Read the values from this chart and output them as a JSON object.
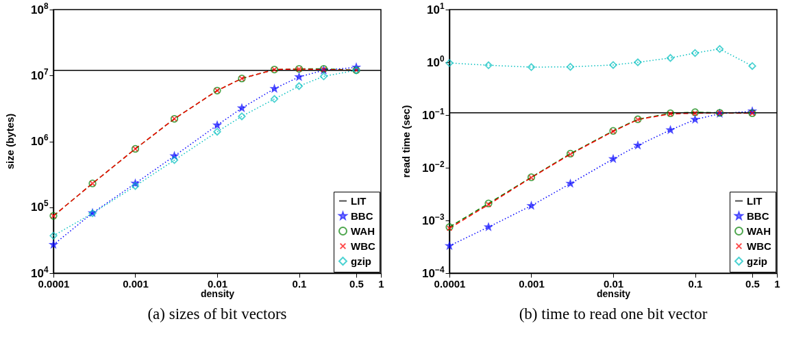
{
  "chart_data": [
    {
      "type": "line",
      "title": "(a) sizes of bit vectors",
      "xlabel": "density",
      "ylabel": "size (bytes)",
      "log": "xy",
      "grid": false,
      "legend": "bottom right",
      "x": [
        0.0001,
        0.0003,
        0.001,
        0.003,
        0.01,
        0.02,
        0.05,
        0.1,
        0.2,
        0.5
      ],
      "xlim": [
        0.0001,
        1
      ],
      "xticks": [
        0.0001,
        0.001,
        0.01,
        0.1,
        0.5,
        1
      ],
      "ylim": [
        10000,
        100000000
      ],
      "yticks": [
        {
          "value": 10000,
          "label": "10$^{4}$"
        },
        {
          "value": 100000,
          "label": "10$^{5}$"
        },
        {
          "value": 1000000,
          "label": "10$^{6}$"
        },
        {
          "value": 10000000,
          "label": "10$^{7}$"
        },
        {
          "value": 100000000,
          "label": "10$^{8}$"
        }
      ],
      "ref_lines": [
        {
          "axis": "y",
          "value": 12000000,
          "label": "LIT",
          "color": "#000000",
          "line_style": "solid"
        }
      ],
      "series": [
        {
          "name": "BBC",
          "color": "#0000ff",
          "marker": "star",
          "line_style": "dotted",
          "values": [
            27000,
            82000,
            230000,
            600000,
            1760000,
            3200000,
            6300000,
            9500000,
            12000000,
            13300000
          ]
        },
        {
          "name": "WAH",
          "color": "#008000",
          "marker": "circle",
          "line_style": "dashed",
          "values": [
            74000,
            230000,
            770000,
            2200000,
            5900000,
            9000000,
            12300000,
            12600000,
            12600000,
            12000000
          ]
        },
        {
          "name": "WBC",
          "color": "#ff0000",
          "marker": "cross",
          "line_style": "dashed",
          "values": [
            74000,
            230000,
            770000,
            2200000,
            5900000,
            9000000,
            12300000,
            12500000,
            12300000,
            12000000
          ]
        },
        {
          "name": "gzip",
          "color": "#00bfbf",
          "marker": "diamond",
          "line_style": "dotted",
          "values": [
            37000,
            81000,
            210000,
            520000,
            1400000,
            2400000,
            4400000,
            6900000,
            9700000,
            12000000
          ]
        }
      ]
    },
    {
      "type": "line",
      "title": "(b) time to read one bit vector",
      "xlabel": "density",
      "ylabel": "read time (sec)",
      "log": "xy",
      "grid": false,
      "legend": "bottom right",
      "x": [
        0.0001,
        0.0003,
        0.001,
        0.003,
        0.01,
        0.02,
        0.05,
        0.1,
        0.2,
        0.5
      ],
      "xlim": [
        0.0001,
        1
      ],
      "xticks": [
        0.0001,
        0.001,
        0.01,
        0.1,
        0.5,
        1
      ],
      "ylim": [
        0.0001,
        10
      ],
      "yticks": [
        {
          "value": 0.0001,
          "label": "10$^{−4}$"
        },
        {
          "value": 0.001,
          "label": "10$^{−3}$"
        },
        {
          "value": 0.01,
          "label": "10$^{−2}$"
        },
        {
          "value": 0.1,
          "label": "10$^{−1}$"
        },
        {
          "value": 1,
          "label": "10$^{0}$"
        },
        {
          "value": 10,
          "label": "10$^{1}$"
        }
      ],
      "ref_lines": [
        {
          "axis": "y",
          "value": 0.11,
          "label": "LIT",
          "color": "#000000",
          "line_style": "solid"
        }
      ],
      "series": [
        {
          "name": "BBC",
          "color": "#0000ff",
          "marker": "star",
          "line_style": "dotted",
          "values": [
            0.00033,
            0.00075,
            0.0019,
            0.005,
            0.0147,
            0.0265,
            0.052,
            0.082,
            0.106,
            0.118
          ]
        },
        {
          "name": "WAH",
          "color": "#008000",
          "marker": "circle",
          "line_style": "dashed",
          "values": [
            0.00075,
            0.0021,
            0.0066,
            0.0185,
            0.05,
            0.083,
            0.108,
            0.113,
            0.11,
            0.108
          ]
        },
        {
          "name": "WBC",
          "color": "#ff0000",
          "marker": "cross",
          "line_style": "dashed",
          "values": [
            0.00071,
            0.002,
            0.0065,
            0.018,
            0.049,
            0.082,
            0.105,
            0.108,
            0.11,
            0.108
          ]
        },
        {
          "name": "gzip",
          "color": "#00bfbf",
          "marker": "diamond",
          "line_style": "dotted",
          "values": [
            0.97,
            0.88,
            0.81,
            0.82,
            0.89,
            1.0,
            1.21,
            1.5,
            1.79,
            0.85
          ]
        }
      ]
    }
  ]
}
